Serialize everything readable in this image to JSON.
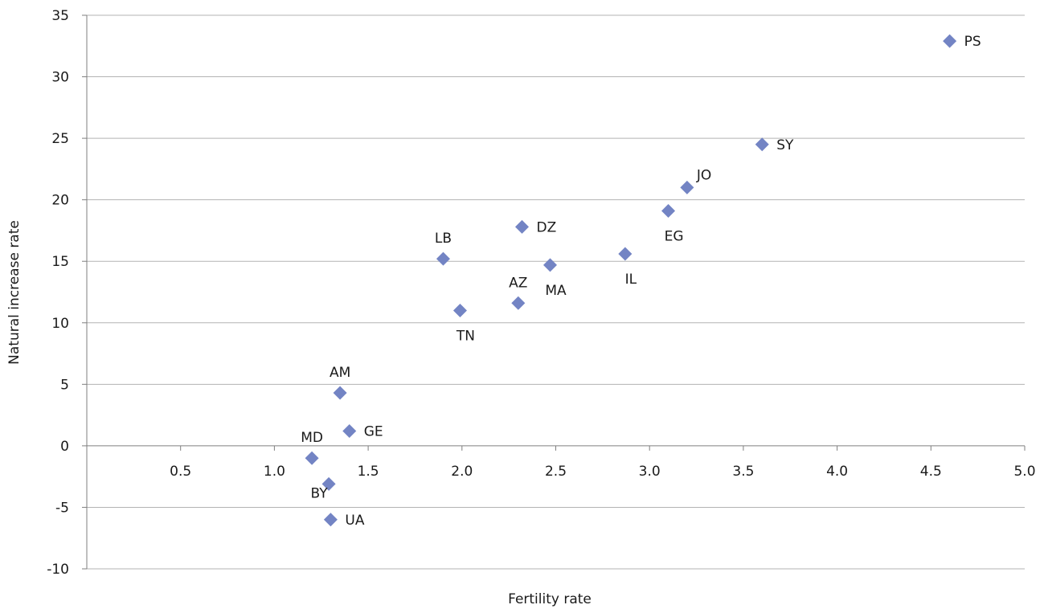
{
  "chart_data": {
    "type": "scatter",
    "title": "",
    "xlabel": "Fertility rate",
    "ylabel": "Natural increase rate",
    "xlim": [
      0,
      5.0
    ],
    "ylim": [
      -10,
      35
    ],
    "x_ticks": [
      "0.5",
      "1.0",
      "1.5",
      "2.0",
      "2.5",
      "3.0",
      "3.5",
      "4.0",
      "4.5",
      "5.0"
    ],
    "y_ticks": [
      "-10",
      "-5",
      "0",
      "5",
      "10",
      "15",
      "20",
      "25",
      "30",
      "35"
    ],
    "grid": "horizontal",
    "legend": "none",
    "marker_color": "#7384c4",
    "points": [
      {
        "label": "PS",
        "x": 4.6,
        "y": 32.9,
        "label_pos": "right"
      },
      {
        "label": "SY",
        "x": 3.6,
        "y": 24.5,
        "label_pos": "right"
      },
      {
        "label": "JO",
        "x": 3.2,
        "y": 21.0,
        "label_pos": "above-right"
      },
      {
        "label": "EG",
        "x": 3.1,
        "y": 19.1,
        "label_pos": "below"
      },
      {
        "label": "IL",
        "x": 2.87,
        "y": 15.6,
        "label_pos": "below"
      },
      {
        "label": "DZ",
        "x": 2.32,
        "y": 17.8,
        "label_pos": "right"
      },
      {
        "label": "MA",
        "x": 2.47,
        "y": 14.7,
        "label_pos": "below"
      },
      {
        "label": "AZ",
        "x": 2.3,
        "y": 11.6,
        "label_pos": "above"
      },
      {
        "label": "LB",
        "x": 1.9,
        "y": 15.2,
        "label_pos": "above"
      },
      {
        "label": "TN",
        "x": 1.99,
        "y": 11.0,
        "label_pos": "below"
      },
      {
        "label": "AM",
        "x": 1.35,
        "y": 4.3,
        "label_pos": "above"
      },
      {
        "label": "GE",
        "x": 1.4,
        "y": 1.2,
        "label_pos": "right"
      },
      {
        "label": "MD",
        "x": 1.2,
        "y": -1.0,
        "label_pos": "above"
      },
      {
        "label": "BY",
        "x": 1.29,
        "y": -3.1,
        "label_pos": "below-left"
      },
      {
        "label": "UA",
        "x": 1.3,
        "y": -6.0,
        "label_pos": "right"
      }
    ]
  }
}
